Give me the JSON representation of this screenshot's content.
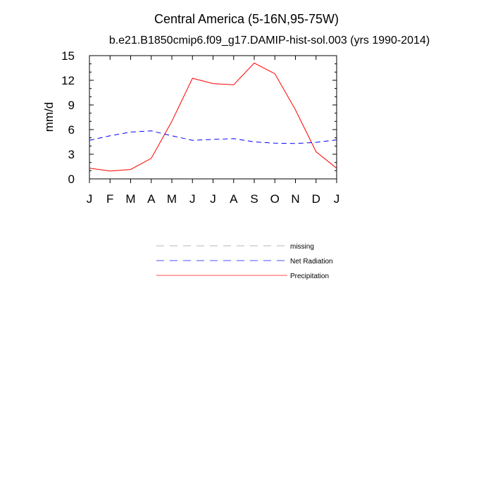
{
  "chart_data": {
    "type": "line",
    "title": "Central America (5-16N,95-75W)",
    "subtitle": "b.e21.B1850cmip6.f09_g17.DAMIP-hist-sol.003 (yrs 1990-2014)",
    "ylabel": "mm/d",
    "xlabel": "",
    "categories": [
      "J",
      "F",
      "M",
      "A",
      "M",
      "J",
      "J",
      "A",
      "S",
      "O",
      "N",
      "D",
      "J"
    ],
    "ylim": [
      0,
      15
    ],
    "yticks": [
      "0",
      "3",
      "6",
      "9",
      "12",
      "15"
    ],
    "grid": false,
    "legend_position": "below",
    "series": [
      {
        "name": "Precipitation",
        "color": "#ff0000",
        "dash": "solid",
        "values": [
          1.3,
          0.95,
          1.15,
          2.5,
          7.0,
          12.25,
          11.6,
          11.45,
          14.1,
          12.8,
          8.4,
          3.3,
          1.3
        ]
      },
      {
        "name": "Net Radiation",
        "color": "#0000ff",
        "dash": "dashed",
        "values": [
          4.7,
          5.25,
          5.7,
          5.85,
          5.25,
          4.7,
          4.8,
          4.9,
          4.5,
          4.35,
          4.3,
          4.45,
          4.75
        ]
      }
    ],
    "legend": [
      {
        "label": "missing",
        "color": "#999999",
        "dash": "dashed"
      },
      {
        "label": "Net Radiation",
        "color": "#0000ff",
        "dash": "dashed"
      },
      {
        "label": "Precipitation",
        "color": "#ff0000",
        "dash": "solid"
      }
    ]
  }
}
